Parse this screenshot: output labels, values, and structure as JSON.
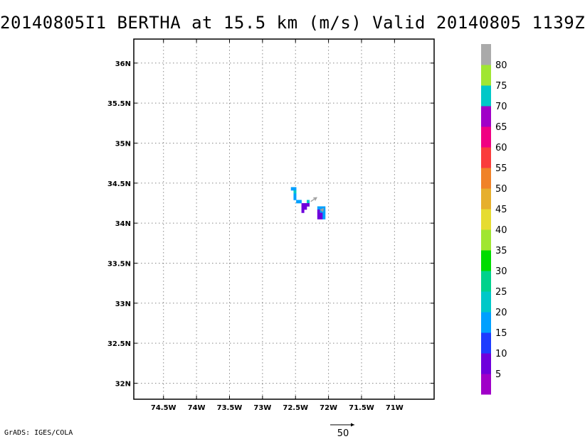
{
  "title": "20140805I1 BERTHA at 15.5 km (m/s) Valid 20140805 1139Z",
  "credit": "GrADS: IGES/COLA",
  "map": {
    "lat_range": [
      31.8,
      36.3
    ],
    "lon_range": [
      -74.95,
      -70.4
    ],
    "lat_ticks": [
      {
        "value": 32.0,
        "label": "32N"
      },
      {
        "value": 32.5,
        "label": "32.5N"
      },
      {
        "value": 33.0,
        "label": "33N"
      },
      {
        "value": 33.5,
        "label": "33.5N"
      },
      {
        "value": 34.0,
        "label": "34N"
      },
      {
        "value": 34.5,
        "label": "34.5N"
      },
      {
        "value": 35.0,
        "label": "35N"
      },
      {
        "value": 35.5,
        "label": "35.5N"
      },
      {
        "value": 36.0,
        "label": "36N"
      }
    ],
    "lon_ticks": [
      {
        "value": -74.5,
        "label": "74.5W"
      },
      {
        "value": -74.0,
        "label": "74W"
      },
      {
        "value": -73.5,
        "label": "73.5W"
      },
      {
        "value": -73.0,
        "label": "73W"
      },
      {
        "value": -72.5,
        "label": "72.5W"
      },
      {
        "value": -72.0,
        "label": "72W"
      },
      {
        "value": -71.5,
        "label": "71.5W"
      },
      {
        "value": -71.0,
        "label": "71W"
      }
    ],
    "grid": true,
    "wind_cells": [
      {
        "lat": 34.43,
        "lon": -72.55,
        "speed": 17
      },
      {
        "lat": 34.43,
        "lon": -72.51,
        "speed": 17
      },
      {
        "lat": 34.39,
        "lon": -72.51,
        "speed": 22
      },
      {
        "lat": 34.35,
        "lon": -72.51,
        "speed": 17
      },
      {
        "lat": 34.31,
        "lon": -72.51,
        "speed": 17
      },
      {
        "lat": 34.27,
        "lon": -72.47,
        "speed": 17
      },
      {
        "lat": 34.27,
        "lon": -72.43,
        "speed": 17
      },
      {
        "lat": 34.27,
        "lon": -72.31,
        "speed": 20
      },
      {
        "lat": 34.23,
        "lon": -72.39,
        "speed": 9
      },
      {
        "lat": 34.23,
        "lon": -72.35,
        "speed": 8
      },
      {
        "lat": 34.23,
        "lon": -72.31,
        "speed": 9
      },
      {
        "lat": 34.19,
        "lon": -72.39,
        "speed": 9
      },
      {
        "lat": 34.19,
        "lon": -72.35,
        "speed": 8
      },
      {
        "lat": 34.15,
        "lon": -72.39,
        "speed": 8
      },
      {
        "lat": 34.19,
        "lon": -72.15,
        "speed": 17
      },
      {
        "lat": 34.19,
        "lon": -72.11,
        "speed": 17
      },
      {
        "lat": 34.19,
        "lon": -72.07,
        "speed": 17
      },
      {
        "lat": 34.15,
        "lon": -72.15,
        "speed": 9
      },
      {
        "lat": 34.15,
        "lon": -72.11,
        "speed": 15
      },
      {
        "lat": 34.15,
        "lon": -72.07,
        "speed": 17
      },
      {
        "lat": 34.11,
        "lon": -72.15,
        "speed": 9
      },
      {
        "lat": 34.11,
        "lon": -72.11,
        "speed": 9
      },
      {
        "lat": 34.11,
        "lon": -72.07,
        "speed": 17
      },
      {
        "lat": 34.07,
        "lon": -72.15,
        "speed": 6
      },
      {
        "lat": 34.07,
        "lon": -72.11,
        "speed": 9
      },
      {
        "lat": 34.07,
        "lon": -72.07,
        "speed": 17
      }
    ],
    "vectors": [
      {
        "lat": 34.27,
        "lon": -72.27,
        "u": 12,
        "v": 8,
        "color": "#a0a0a0"
      },
      {
        "lat": 34.15,
        "lon": -72.11,
        "u": 4,
        "v": 5,
        "color": "#a0a0a0"
      }
    ]
  },
  "colorbar": {
    "levels": [
      "5",
      "10",
      "15",
      "20",
      "25",
      "30",
      "35",
      "40",
      "45",
      "50",
      "55",
      "60",
      "65",
      "70",
      "75",
      "80"
    ],
    "colors": [
      "#a000c8",
      "#6e00dc",
      "#1e3cff",
      "#00a0ff",
      "#00c8c8",
      "#00d28c",
      "#00dc00",
      "#a0e632",
      "#e6dc32",
      "#e6af2d",
      "#f08228",
      "#fa3c3c",
      "#f00082",
      "#a000c8",
      "#00c8c8",
      "#a0e632",
      "#aaaaaa"
    ]
  },
  "reference_vector": {
    "label": "50"
  }
}
